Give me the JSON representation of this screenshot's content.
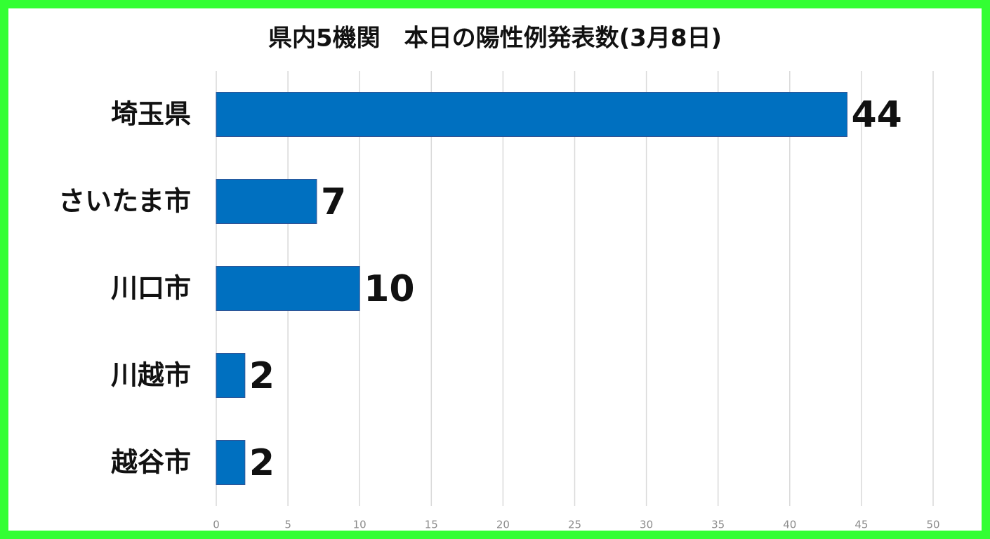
{
  "chart_data": {
    "type": "hbar",
    "title": "県内5機関　本日の陽性例発表数(3月8日)",
    "categories": [
      "埼玉県",
      "さいたま市",
      "川口市",
      "川越市",
      "越谷市"
    ],
    "values": [
      44,
      7,
      10,
      2,
      2
    ],
    "color": "#0070c0",
    "xlim": [
      0,
      50
    ],
    "xticks": [
      0,
      5,
      10,
      15,
      20,
      25,
      30,
      35,
      40,
      45,
      50
    ],
    "grid": true
  }
}
